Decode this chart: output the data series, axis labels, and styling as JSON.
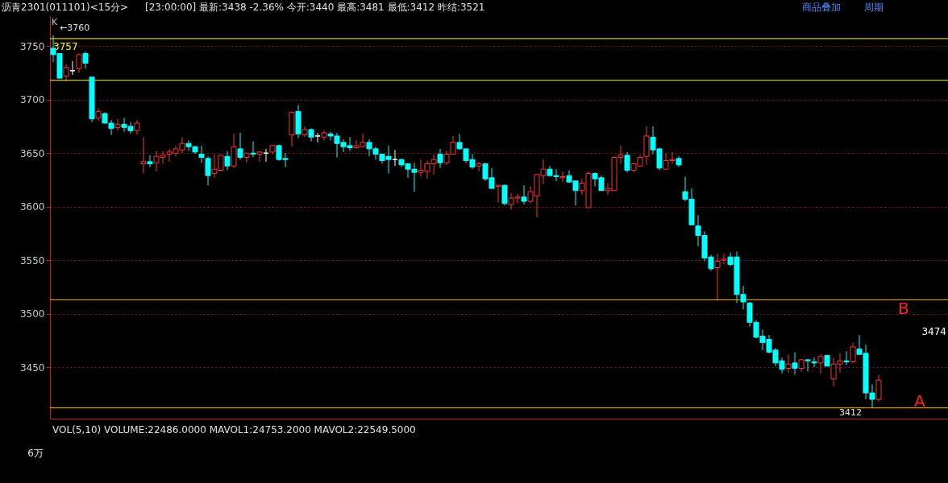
{
  "chart_data": {
    "type": "candlestick",
    "title": "沥青2301(011101)<15分>",
    "subtitle": "[23:00:00]  最新:3438  -2.36%  今开:3440  最高:3481  最低:3412  昨结:3521",
    "categories": [
      null,
      null,
      null,
      null,
      null,
      null,
      null,
      null,
      null,
      null,
      null,
      null,
      null,
      null,
      null,
      null,
      null,
      null,
      null,
      null,
      null,
      null,
      null,
      null,
      null,
      null,
      null,
      null,
      null,
      null,
      null,
      null,
      null,
      null,
      null,
      null,
      null,
      null,
      null,
      null,
      null,
      null,
      null,
      null,
      null,
      null,
      null,
      null,
      null,
      null,
      null,
      null,
      null,
      null,
      null,
      null,
      null,
      null,
      null,
      null,
      null,
      null,
      null,
      null,
      null,
      null,
      null,
      null,
      null,
      null,
      null,
      null,
      null,
      null,
      null,
      null,
      null,
      null,
      null,
      null,
      null,
      null,
      null,
      null,
      null,
      null,
      null,
      null,
      null,
      null,
      null,
      null,
      null,
      null,
      null,
      null,
      null,
      null,
      null,
      null,
      null,
      null,
      null,
      null,
      null,
      null,
      null,
      null,
      null,
      null,
      null,
      null,
      null,
      null,
      null,
      null,
      null,
      null,
      null,
      null,
      null,
      null,
      null,
      null,
      null,
      null,
      null,
      null,
      null
    ],
    "ohlc": [
      [
        3748,
        3760,
        3735,
        3742
      ],
      [
        3743,
        3743,
        3720,
        3720
      ],
      [
        3722,
        3733,
        3717,
        3730
      ],
      [
        3727,
        3736,
        3723,
        3727
      ],
      [
        3729,
        3743,
        3725,
        3742
      ],
      [
        3743,
        3745,
        3729,
        3734
      ],
      [
        3721,
        3721,
        3679,
        3682
      ],
      [
        3683,
        3692,
        3680,
        3689
      ],
      [
        3687,
        3688,
        3678,
        3678
      ],
      [
        3678,
        3681,
        3667,
        3673
      ],
      [
        3674,
        3682,
        3671,
        3677
      ],
      [
        3677,
        3683,
        3670,
        3674
      ],
      [
        3675,
        3679,
        3668,
        3671
      ],
      [
        3671,
        3681,
        3667,
        3678
      ],
      [
        3640,
        3665,
        3631,
        3642
      ],
      [
        3642,
        3648,
        3637,
        3640
      ],
      [
        3641,
        3652,
        3633,
        3647
      ],
      [
        3646,
        3652,
        3640,
        3648
      ],
      [
        3649,
        3654,
        3642,
        3651
      ],
      [
        3650,
        3657,
        3647,
        3654
      ],
      [
        3653,
        3665,
        3650,
        3659
      ],
      [
        3659,
        3662,
        3652,
        3656
      ],
      [
        3656,
        3657,
        3649,
        3651
      ],
      [
        3649,
        3657,
        3641,
        3646
      ],
      [
        3645,
        3647,
        3620,
        3629
      ],
      [
        3631,
        3649,
        3627,
        3635
      ],
      [
        3634,
        3648,
        3633,
        3648
      ],
      [
        3647,
        3652,
        3634,
        3638
      ],
      [
        3638,
        3668,
        3636,
        3656
      ],
      [
        3654,
        3669,
        3644,
        3646
      ],
      [
        3646,
        3650,
        3641,
        3650
      ],
      [
        3650,
        3661,
        3646,
        3649
      ],
      [
        3649,
        3652,
        3642,
        3651
      ],
      [
        3650,
        3654,
        3642,
        3650
      ],
      [
        3651,
        3658,
        3649,
        3657
      ],
      [
        3657,
        3658,
        3643,
        3644
      ],
      [
        3645,
        3650,
        3637,
        3644
      ],
      [
        3667,
        3689,
        3656,
        3688
      ],
      [
        3689,
        3695,
        3664,
        3668
      ],
      [
        3667,
        3675,
        3665,
        3672
      ],
      [
        3672,
        3673,
        3661,
        3665
      ],
      [
        3666,
        3669,
        3660,
        3666
      ],
      [
        3665,
        3671,
        3662,
        3669
      ],
      [
        3668,
        3670,
        3662,
        3666
      ],
      [
        3666,
        3669,
        3646,
        3659
      ],
      [
        3660,
        3663,
        3651,
        3656
      ],
      [
        3657,
        3665,
        3652,
        3655
      ],
      [
        3655,
        3662,
        3654,
        3657
      ],
      [
        3656,
        3668,
        3656,
        3660
      ],
      [
        3660,
        3663,
        3647,
        3654
      ],
      [
        3654,
        3656,
        3644,
        3649
      ],
      [
        3649,
        3649,
        3640,
        3643
      ],
      [
        3647,
        3657,
        3631,
        3644
      ],
      [
        3644,
        3653,
        3638,
        3644
      ],
      [
        3644,
        3645,
        3637,
        3639
      ],
      [
        3640,
        3641,
        3627,
        3635
      ],
      [
        3635,
        3641,
        3614,
        3632
      ],
      [
        3632,
        3644,
        3628,
        3634
      ],
      [
        3633,
        3643,
        3626,
        3640
      ],
      [
        3640,
        3649,
        3630,
        3644
      ],
      [
        3649,
        3654,
        3636,
        3641
      ],
      [
        3641,
        3652,
        3639,
        3649
      ],
      [
        3649,
        3666,
        3649,
        3660
      ],
      [
        3660,
        3668,
        3653,
        3654
      ],
      [
        3654,
        3654,
        3641,
        3643
      ],
      [
        3644,
        3649,
        3635,
        3637
      ],
      [
        3638,
        3642,
        3633,
        3640
      ],
      [
        3640,
        3641,
        3624,
        3626
      ],
      [
        3627,
        3636,
        3617,
        3617
      ],
      [
        3619,
        3620,
        3604,
        3620
      ],
      [
        3620,
        3620,
        3601,
        3603
      ],
      [
        3602,
        3613,
        3597,
        3608
      ],
      [
        3608,
        3612,
        3603,
        3609
      ],
      [
        3609,
        3620,
        3602,
        3605
      ],
      [
        3605,
        3619,
        3603,
        3614
      ],
      [
        3610,
        3630,
        3590,
        3630
      ],
      [
        3629,
        3644,
        3621,
        3635
      ],
      [
        3635,
        3638,
        3628,
        3629
      ],
      [
        3629,
        3635,
        3624,
        3628
      ],
      [
        3627,
        3633,
        3623,
        3628
      ],
      [
        3629,
        3634,
        3622,
        3623
      ],
      [
        3624,
        3624,
        3601,
        3615
      ],
      [
        3615,
        3626,
        3611,
        3622
      ],
      [
        3599,
        3633,
        3599,
        3631
      ],
      [
        3631,
        3632,
        3619,
        3626
      ],
      [
        3627,
        3629,
        3615,
        3615
      ],
      [
        3615,
        3622,
        3611,
        3617
      ],
      [
        3615,
        3647,
        3615,
        3646
      ],
      [
        3646,
        3657,
        3640,
        3648
      ],
      [
        3648,
        3651,
        3632,
        3634
      ],
      [
        3634,
        3641,
        3632,
        3640
      ],
      [
        3638,
        3648,
        3637,
        3646
      ],
      [
        3647,
        3675,
        3639,
        3666
      ],
      [
        3665,
        3675,
        3649,
        3653
      ],
      [
        3654,
        3655,
        3634,
        3636
      ],
      [
        3635,
        3650,
        3635,
        3643
      ],
      [
        3643,
        3651,
        3640,
        3644
      ],
      [
        3645,
        3647,
        3637,
        3639
      ],
      [
        3614,
        3628,
        3605,
        3607
      ],
      [
        3607,
        3617,
        3583,
        3583
      ],
      [
        3582,
        3592,
        3563,
        3573
      ],
      [
        3573,
        3577,
        3549,
        3552
      ],
      [
        3553,
        3555,
        3540,
        3542
      ],
      [
        3543,
        3556,
        3512,
        3549
      ],
      [
        3550,
        3556,
        3546,
        3551
      ],
      [
        3553,
        3557,
        3544,
        3546
      ],
      [
        3553,
        3558,
        3510,
        3518
      ],
      [
        3518,
        3526,
        3504,
        3511
      ],
      [
        3510,
        3511,
        3488,
        3492
      ],
      [
        3492,
        3494,
        3477,
        3478
      ],
      [
        3479,
        3485,
        3466,
        3473
      ],
      [
        3476,
        3480,
        3463,
        3464
      ],
      [
        3466,
        3468,
        3451,
        3454
      ],
      [
        3456,
        3459,
        3444,
        3448
      ],
      [
        3449,
        3462,
        3445,
        3453
      ],
      [
        3454,
        3464,
        3443,
        3449
      ],
      [
        3449,
        3457,
        3446,
        3457
      ],
      [
        3457,
        3457,
        3446,
        3456
      ],
      [
        3455,
        3459,
        3450,
        3454
      ],
      [
        3454,
        3462,
        3444,
        3460
      ],
      [
        3461,
        3461,
        3451,
        3451
      ],
      [
        3439,
        3459,
        3432,
        3453
      ],
      [
        3453,
        3463,
        3445,
        3456
      ],
      [
        3456,
        3465,
        3452,
        3455
      ],
      [
        3455,
        3473,
        3454,
        3469
      ],
      [
        3467,
        3480,
        3462,
        3462
      ],
      [
        3463,
        3471,
        3420,
        3426
      ],
      [
        3426,
        3434,
        3412,
        3420
      ],
      [
        3420,
        3443,
        3418,
        3438
      ]
    ],
    "colors": [
      "#00ffff",
      "#00ffff",
      "#ff3232",
      "#ffffff",
      "#ff3232",
      "#00ffff",
      "#00ffff",
      "#ff3232",
      "#00ffff",
      "#00ffff",
      "#ff3232",
      "#00ffff",
      "#00ffff",
      "#ff3232",
      "#ff3232",
      "#00ffff",
      "#ff3232",
      "#ff3232",
      "#ff3232",
      "#ff3232",
      "#ff3232",
      "#00ffff",
      "#00ffff",
      "#00ffff",
      "#00ffff",
      "#ff3232",
      "#ff3232",
      "#00ffff",
      "#ff3232",
      "#00ffff",
      "#ff3232",
      "#00ffff",
      "#ff3232",
      "#ffffff",
      "#ff3232",
      "#00ffff",
      "#00ffff",
      "#ff3232",
      "#00ffff",
      "#ff3232",
      "#00ffff",
      "#ffffff",
      "#ff3232",
      "#00ffff",
      "#00ffff",
      "#00ffff",
      "#00ffff",
      "#ff3232",
      "#ff3232",
      "#00ffff",
      "#00ffff",
      "#00ffff",
      "#00ffff",
      "#ffffff",
      "#00ffff",
      "#00ffff",
      "#00ffff",
      "#ff3232",
      "#ff3232",
      "#ff3232",
      "#00ffff",
      "#ff3232",
      "#ff3232",
      "#00ffff",
      "#00ffff",
      "#00ffff",
      "#ff3232",
      "#00ffff",
      "#00ffff",
      "#ff3232",
      "#00ffff",
      "#ff3232",
      "#ff3232",
      "#00ffff",
      "#ff3232",
      "#ff3232",
      "#ff3232",
      "#00ffff",
      "#00ffff",
      "#ff3232",
      "#00ffff",
      "#00ffff",
      "#ff3232",
      "#ff3232",
      "#00ffff",
      "#00ffff",
      "#ff3232",
      "#ff3232",
      "#ff3232",
      "#00ffff",
      "#ff3232",
      "#ff3232",
      "#ff3232",
      "#00ffff",
      "#00ffff",
      "#ff3232",
      "#ff3232",
      "#00ffff",
      "#00ffff",
      "#00ffff",
      "#00ffff",
      "#00ffff",
      "#00ffff",
      "#ff3232",
      "#ff3232",
      "#00ffff",
      "#00ffff",
      "#00ffff",
      "#00ffff",
      "#00ffff",
      "#00ffff",
      "#00ffff",
      "#00ffff",
      "#00ffff",
      "#ff3232",
      "#00ffff",
      "#ff3232",
      "#00ffff",
      "#00ffff",
      "#ff3232",
      "#00ffff",
      "#ff3232",
      "#ff3232",
      "#00ffff",
      "#ff3232",
      "#00ffff",
      "#00ffff",
      "#00ffff",
      "#ff3232"
    ],
    "ylim": [
      3402,
      3778
    ],
    "yticks": [
      3450,
      3500,
      3550,
      3600,
      3650,
      3700,
      3750
    ],
    "grid": "y",
    "tick_labels": "y",
    "ref_lines": [
      {
        "axis": "y",
        "value": 3757,
        "label": "3757",
        "color": "#ffff00"
      },
      {
        "axis": "y",
        "value": 3718,
        "color": "#ffff00"
      },
      {
        "axis": "y",
        "value": 3513,
        "label": "B",
        "color": "#ffb000"
      },
      {
        "axis": "y",
        "value": 3412,
        "label": "A",
        "color": "#ffb000"
      }
    ],
    "annotations": [
      "K",
      {
        "text": "←3760",
        "y": 3760
      },
      {
        "text": "3412",
        "y": 3412
      },
      "3474",
      "商品叠加",
      "周期",
      "VOL(5,10)  VOLUME:22486.0000  MAVOL1:24753.2000  MAVOL2:22549.5000",
      "6万"
    ]
  }
}
